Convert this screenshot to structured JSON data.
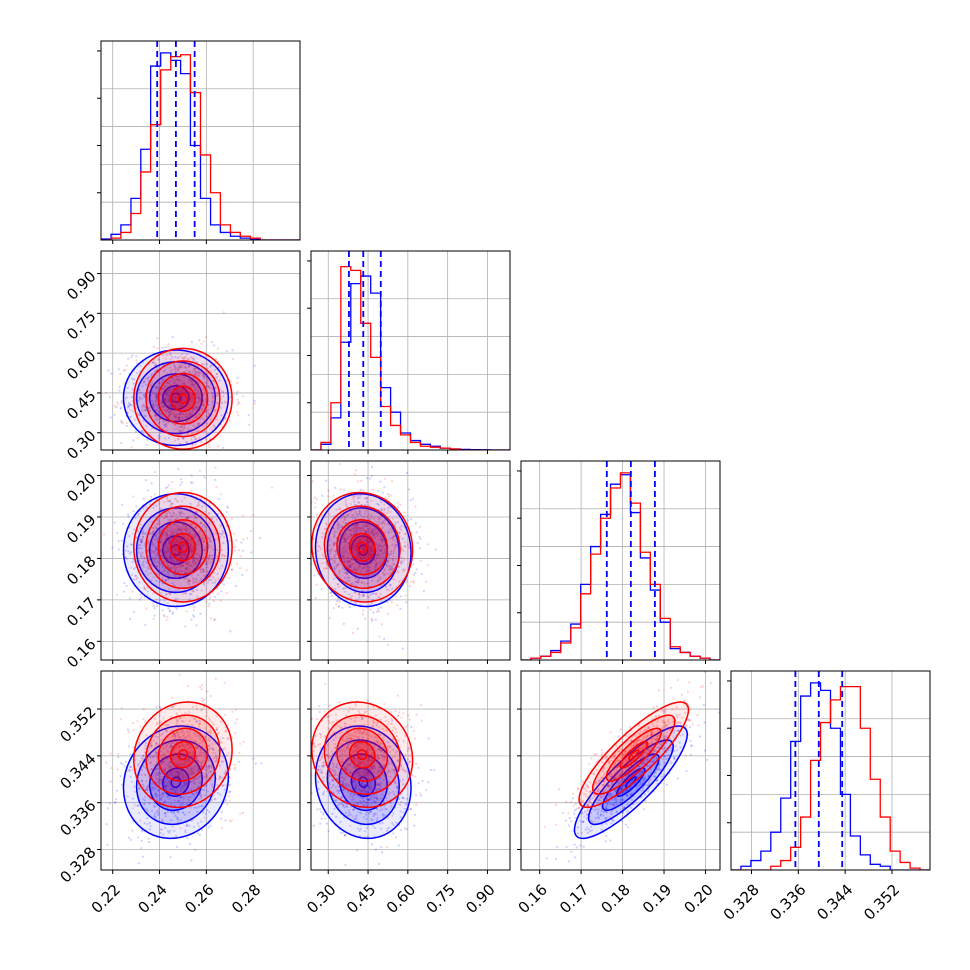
{
  "chart_data": {
    "type": "corner",
    "parameters": [
      {
        "ticks": [
          "0.22",
          "0.24",
          "0.26",
          "0.28"
        ],
        "tick_values": [
          0.22,
          0.24,
          0.26,
          0.28
        ],
        "range": [
          0.215,
          0.3
        ]
      },
      {
        "ticks": [
          "0.30",
          "0.45",
          "0.60",
          "0.75",
          "0.90"
        ],
        "tick_values": [
          0.3,
          0.45,
          0.6,
          0.75,
          0.9
        ],
        "range": [
          0.235,
          0.985
        ]
      },
      {
        "ticks": [
          "0.16",
          "0.17",
          "0.18",
          "0.19",
          "0.20"
        ],
        "tick_values": [
          0.16,
          0.17,
          0.18,
          0.19,
          0.2
        ],
        "range": [
          0.1555,
          0.2035
        ]
      },
      {
        "ticks": [
          "0.328",
          "0.336",
          "0.344",
          "0.352"
        ],
        "tick_values": [
          0.328,
          0.336,
          0.344,
          0.352
        ],
        "range": [
          0.3245,
          0.3585
        ]
      }
    ],
    "grid": true,
    "series": [
      {
        "color": "#0000ff",
        "quantile_lines": [
          [
            0.239,
            0.247,
            0.255
          ],
          [
            0.378,
            0.432,
            0.498
          ],
          [
            0.1762,
            0.182,
            0.1878
          ],
          [
            0.3355,
            0.3395,
            0.3435
          ]
        ],
        "centers": [
          0.247,
          0.432,
          0.182,
          0.3395
        ],
        "sigmas": [
          0.0112,
          0.09,
          0.0068,
          0.0048
        ],
        "correlations": {
          "0-1": 0.0,
          "0-2": 0.0,
          "0-3": 0.1,
          "1-2": -0.05,
          "1-3": -0.1,
          "2-3": 0.85
        },
        "histograms": [
          {
            "bins": [
              0.215,
              0.2193,
              0.2235,
              0.2278,
              0.232,
              0.2362,
              0.2405,
              0.2448,
              0.249,
              0.2532,
              0.2575,
              0.2618,
              0.266,
              0.2703,
              0.2745,
              0.2788,
              0.283,
              0.2873,
              0.2915,
              0.2958,
              0.3
            ],
            "counts": [
              0.005,
              0.03,
              0.08,
              0.22,
              0.48,
              0.92,
              0.99,
              0.95,
              0.88,
              0.5,
              0.22,
              0.08,
              0.04,
              0.02,
              0.01,
              0.004,
              0.0,
              0.0,
              0.0,
              0.0
            ]
          },
          {
            "bins": [
              0.235,
              0.2725,
              0.31,
              0.3475,
              0.385,
              0.4225,
              0.46,
              0.4975,
              0.535,
              0.5725,
              0.61,
              0.6475,
              0.685,
              0.7225,
              0.76,
              0.7975,
              0.835,
              0.8725,
              0.91,
              0.9475,
              0.985
            ],
            "counts": [
              0.0,
              0.03,
              0.17,
              0.57,
              0.88,
              0.92,
              0.83,
              0.33,
              0.2,
              0.09,
              0.05,
              0.03,
              0.02,
              0.01,
              0.005,
              0.003,
              0.002,
              0.001,
              0.0,
              0.0
            ]
          },
          {
            "bins": [
              0.1555,
              0.1579,
              0.1603,
              0.1627,
              0.1651,
              0.1675,
              0.1699,
              0.1723,
              0.1747,
              0.1771,
              0.1795,
              0.1819,
              0.1843,
              0.1867,
              0.1891,
              0.1915,
              0.1939,
              0.1963,
              0.1987,
              0.2011,
              0.2035
            ],
            "counts": [
              0.0,
              0.01,
              0.02,
              0.05,
              0.1,
              0.19,
              0.4,
              0.6,
              0.77,
              0.93,
              0.98,
              0.78,
              0.54,
              0.37,
              0.2,
              0.06,
              0.04,
              0.02,
              0.01,
              0.0
            ]
          },
          {
            "bins": [
              0.3245,
              0.3262,
              0.3279,
              0.3296,
              0.3313,
              0.333,
              0.3347,
              0.3364,
              0.3381,
              0.3398,
              0.3415,
              0.3432,
              0.3449,
              0.3466,
              0.3483,
              0.35,
              0.3517,
              0.3534,
              0.3551,
              0.3568,
              0.3585
            ],
            "counts": [
              0.0,
              0.02,
              0.05,
              0.1,
              0.2,
              0.38,
              0.68,
              0.92,
              0.99,
              0.95,
              0.75,
              0.4,
              0.18,
              0.08,
              0.03,
              0.02,
              0.0,
              0.0,
              0.0,
              0.0
            ]
          }
        ]
      },
      {
        "color": "#ff0000",
        "quantile_lines": null,
        "centers": [
          0.25,
          0.428,
          0.1827,
          0.3442
        ],
        "sigmas": [
          0.0105,
          0.095,
          0.0066,
          0.0045
        ],
        "correlations": {
          "0-1": 0.0,
          "0-2": 0.0,
          "0-3": 0.1,
          "1-2": -0.05,
          "1-3": -0.1,
          "2-3": 0.85
        },
        "histograms": [
          {
            "bins": [
              0.215,
              0.2193,
              0.2235,
              0.2278,
              0.232,
              0.2362,
              0.2405,
              0.2448,
              0.249,
              0.2532,
              0.2575,
              0.2618,
              0.266,
              0.2703,
              0.2745,
              0.2788,
              0.283,
              0.2873,
              0.2915,
              0.2958,
              0.3
            ],
            "counts": [
              0.0,
              0.01,
              0.04,
              0.14,
              0.36,
              0.61,
              0.9,
              0.97,
              0.98,
              0.78,
              0.45,
              0.25,
              0.08,
              0.04,
              0.02,
              0.01,
              0.0,
              0.0,
              0.0,
              0.0
            ]
          },
          {
            "bins": [
              0.235,
              0.2725,
              0.31,
              0.3475,
              0.385,
              0.4225,
              0.46,
              0.4975,
              0.535,
              0.5725,
              0.61,
              0.6475,
              0.685,
              0.7225,
              0.76,
              0.7975,
              0.835,
              0.8725,
              0.91,
              0.9475,
              0.985
            ],
            "counts": [
              0.0,
              0.04,
              0.25,
              0.97,
              0.95,
              0.67,
              0.49,
              0.23,
              0.13,
              0.08,
              0.04,
              0.02,
              0.015,
              0.01,
              0.005,
              0.0,
              0.0,
              0.0,
              0.0,
              0.0
            ]
          },
          {
            "bins": [
              0.1555,
              0.1579,
              0.1603,
              0.1627,
              0.1651,
              0.1675,
              0.1699,
              0.1723,
              0.1747,
              0.1771,
              0.1795,
              0.1819,
              0.1843,
              0.1867,
              0.1891,
              0.1915,
              0.1939,
              0.1963,
              0.1987,
              0.2011,
              0.2035
            ],
            "counts": [
              0.0,
              0.01,
              0.02,
              0.04,
              0.09,
              0.17,
              0.35,
              0.56,
              0.75,
              0.91,
              0.99,
              0.83,
              0.57,
              0.4,
              0.22,
              0.07,
              0.04,
              0.02,
              0.01,
              0.0
            ]
          },
          {
            "bins": [
              0.3245,
              0.3262,
              0.3279,
              0.3296,
              0.3313,
              0.333,
              0.3347,
              0.3364,
              0.3381,
              0.3398,
              0.3415,
              0.3432,
              0.3449,
              0.3466,
              0.3483,
              0.35,
              0.3517,
              0.3534,
              0.3551,
              0.3568,
              0.3585
            ],
            "counts": [
              0.0,
              0.0,
              0.0,
              0.0,
              0.02,
              0.05,
              0.12,
              0.28,
              0.58,
              0.78,
              0.9,
              0.97,
              0.97,
              0.75,
              0.48,
              0.28,
              0.1,
              0.04,
              0.01,
              0.0
            ]
          }
        ]
      }
    ]
  }
}
